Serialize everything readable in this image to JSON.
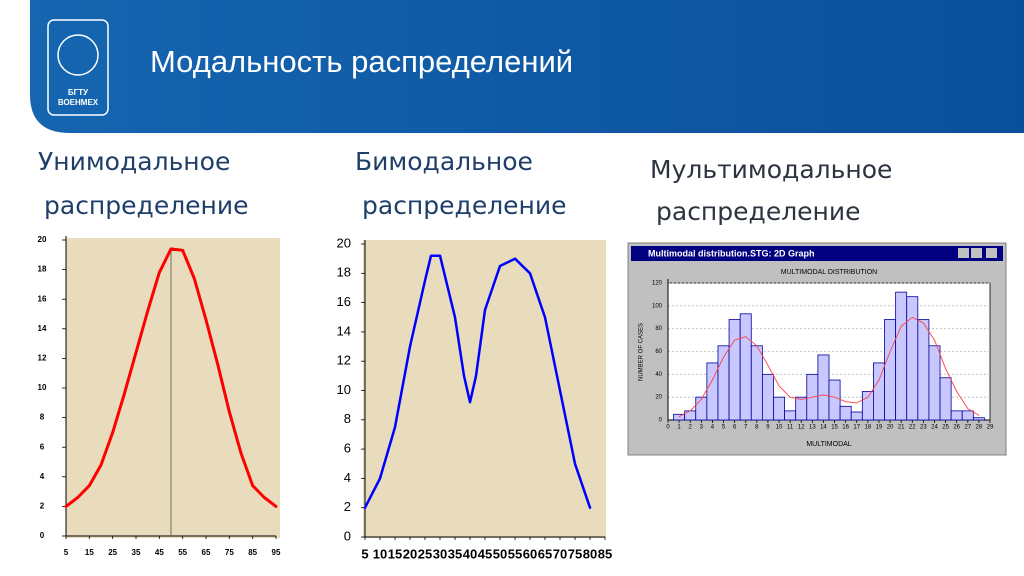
{
  "title": "Модальность распределений",
  "logo": [
    "БГТУ",
    "ВОЕНМЕХ"
  ],
  "headings": [
    [
      "Унимодальное",
      "распределение"
    ],
    [
      "Бимодальное",
      "распределение"
    ],
    [
      "Мультимодальное",
      "распределение"
    ]
  ],
  "chart_data": [
    {
      "type": "line",
      "color": "#ff0000",
      "x": [
        5,
        10,
        15,
        20,
        25,
        30,
        35,
        40,
        45,
        50,
        55,
        60,
        65,
        70,
        75,
        80,
        85,
        90,
        95
      ],
      "values": [
        2,
        2.6,
        3.4,
        4.8,
        7,
        9.6,
        12.4,
        15.2,
        17.8,
        19.4,
        19.3,
        17.4,
        14.6,
        11.6,
        8.4,
        5.6,
        3.4,
        2.6,
        2
      ],
      "reference_x": 50,
      "xlim": [
        5,
        95
      ],
      "xticks": [
        5,
        15,
        25,
        35,
        45,
        55,
        65,
        75,
        85,
        95
      ],
      "ylim": [
        0,
        20
      ],
      "yticks": [
        0,
        2,
        4,
        6,
        8,
        10,
        12,
        14,
        16,
        18,
        20
      ]
    },
    {
      "type": "line",
      "color": "#0000ff",
      "x": [
        5,
        10,
        15,
        20,
        25,
        27,
        30,
        35,
        38,
        40,
        42,
        45,
        50,
        55,
        60,
        65,
        70,
        75,
        80
      ],
      "values": [
        2,
        4,
        7.5,
        13,
        17.5,
        19.2,
        19.2,
        15,
        11,
        9.2,
        11,
        15.5,
        18.5,
        19,
        18,
        15,
        10,
        5,
        2
      ],
      "xlim": [
        5,
        85
      ],
      "xticks": [
        5,
        10,
        15,
        20,
        25,
        30,
        35,
        40,
        45,
        50,
        55,
        60,
        65,
        70,
        75,
        80,
        85
      ],
      "ylim": [
        0,
        20
      ],
      "yticks": [
        0,
        2,
        4,
        6,
        8,
        10,
        12,
        14,
        16,
        18,
        20
      ]
    },
    {
      "type": "bar",
      "window_title": "Multimodal distribution.STG: 2D Graph",
      "title": "MULTIMODAL DISTRIBUTION",
      "x_label": "MULTIMODAL",
      "y_label": "NUMBER OF CASES",
      "color": "#c8c8ff",
      "edge_color": "#0000a0",
      "x": [
        1,
        2,
        3,
        4,
        5,
        6,
        7,
        8,
        9,
        10,
        11,
        12,
        13,
        14,
        15,
        16,
        17,
        18,
        19,
        20,
        21,
        22,
        23,
        24,
        25,
        26,
        27,
        28
      ],
      "values": [
        5,
        8,
        20,
        50,
        65,
        88,
        93,
        65,
        40,
        20,
        8,
        20,
        40,
        57,
        35,
        12,
        7,
        25,
        50,
        88,
        112,
        108,
        88,
        65,
        37,
        8,
        8,
        2
      ],
      "fit": {
        "color": "#ff4040",
        "values": [
          3,
          8,
          18,
          35,
          55,
          70,
          73,
          65,
          48,
          30,
          20,
          18,
          20,
          22,
          20,
          16,
          15,
          20,
          35,
          60,
          82,
          90,
          85,
          70,
          45,
          25,
          10,
          4
        ]
      },
      "xlim": [
        0,
        29
      ],
      "xticks": [
        0,
        1,
        2,
        3,
        4,
        5,
        6,
        7,
        8,
        9,
        10,
        11,
        12,
        13,
        14,
        15,
        16,
        17,
        18,
        19,
        20,
        21,
        22,
        23,
        24,
        25,
        26,
        27,
        28,
        29
      ],
      "ylim": [
        0,
        120
      ],
      "yticks": [
        0,
        20,
        40,
        60,
        80,
        100,
        120
      ],
      "grid": true
    }
  ]
}
